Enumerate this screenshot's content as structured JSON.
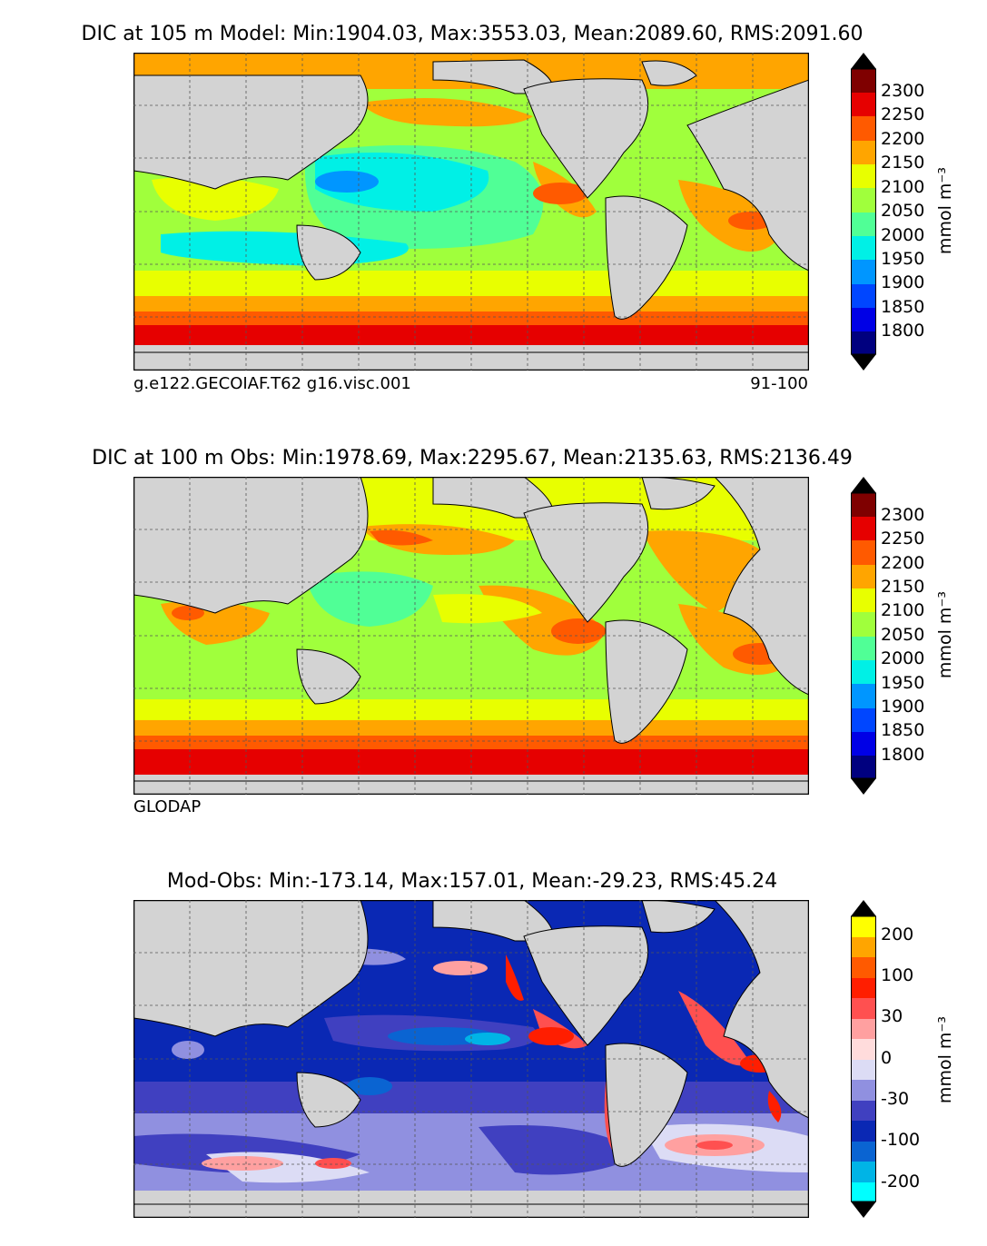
{
  "panels": [
    {
      "title": "DIC at 105 m Model: Min:1904.03, Max:3553.03, Mean:2089.60, RMS:2091.60",
      "note_left": "g.e122.GECOIAF.T62 g16.visc.001",
      "note_right": "91-100",
      "unit": "mmol m⁻³",
      "colorbar_labels": [
        "2300",
        "2250",
        "2200",
        "2150",
        "2100",
        "2050",
        "2000",
        "1950",
        "1900",
        "1850",
        "1800"
      ]
    },
    {
      "title": "DIC at 100 m Obs: Min:1978.69, Max:2295.67, Mean:2135.63, RMS:2136.49",
      "note_left": "GLODAP",
      "note_right": "",
      "unit": "mmol m⁻³",
      "colorbar_labels": [
        "2300",
        "2250",
        "2200",
        "2150",
        "2100",
        "2050",
        "2000",
        "1950",
        "1900",
        "1850",
        "1800"
      ]
    },
    {
      "title": "Mod-Obs: Min:-173.14, Max:157.01, Mean:-29.23, RMS:45.24",
      "note_left": "",
      "note_right": "",
      "unit": "mmol m⁻³",
      "colorbar_labels": [
        "200",
        "100",
        "30",
        "0",
        "-30",
        "-100",
        "-200"
      ]
    }
  ],
  "colors": {
    "dic_scale_top_to_bottom": [
      "#7f0000",
      "#e60000",
      "#ff5a00",
      "#ffa500",
      "#e8ff00",
      "#a0ff3c",
      "#50ff96",
      "#00f0e6",
      "#0096ff",
      "#0046ff",
      "#0000e6",
      "#00007f"
    ],
    "diff_scale_top_to_bottom": [
      "#ffff00",
      "#ffa500",
      "#ff5a00",
      "#ff1e00",
      "#ff5050",
      "#ffa0a0",
      "#ffdcdc",
      "#dcdcf5",
      "#9090e0",
      "#4040c0",
      "#0a28b4",
      "#0a64d2",
      "#00b4e6",
      "#00ffff"
    ],
    "land": "#d3d3d3"
  },
  "chart_data": [
    {
      "type": "heatmap",
      "title": "DIC at 105 m Model: Min:1904.03, Max:3553.03, Mean:2089.60, RMS:2091.60",
      "stats": {
        "min": 1904.03,
        "max": 3553.03,
        "mean": 2089.6,
        "rms": 2091.6
      },
      "colorbar": {
        "ticks": [
          2300,
          2250,
          2200,
          2150,
          2100,
          2050,
          2000,
          1950,
          1900,
          1850,
          1800
        ],
        "unit": "mmol m-3",
        "extend": "both"
      }
    },
    {
      "type": "heatmap",
      "title": "DIC at 100 m Obs: Min:1978.69, Max:2295.67, Mean:2135.63, RMS:2136.49",
      "stats": {
        "min": 1978.69,
        "max": 2295.67,
        "mean": 2135.63,
        "rms": 2136.49
      },
      "colorbar": {
        "ticks": [
          2300,
          2250,
          2200,
          2150,
          2100,
          2050,
          2000,
          1950,
          1900,
          1850,
          1800
        ],
        "unit": "mmol m-3",
        "extend": "both"
      }
    },
    {
      "type": "heatmap",
      "title": "Mod-Obs: Min:-173.14, Max:157.01, Mean:-29.23, RMS:45.24",
      "stats": {
        "min": -173.14,
        "max": 157.01,
        "mean": -29.23,
        "rms": 45.24
      },
      "colorbar": {
        "ticks": [
          200,
          100,
          30,
          0,
          -30,
          -100,
          -200
        ],
        "unit": "mmol m-3",
        "extend": "both"
      }
    }
  ]
}
